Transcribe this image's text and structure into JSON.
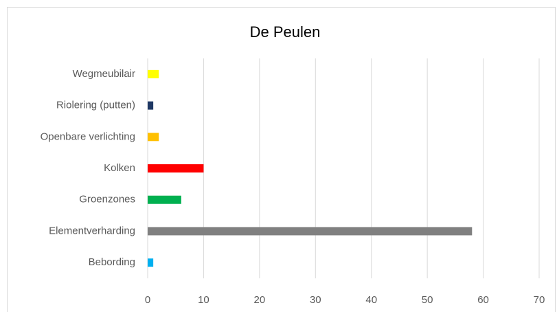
{
  "chart_data": {
    "type": "hbar",
    "title": "De Peulen",
    "categories": [
      "Wegmeubilair",
      "Riolering (putten)",
      "Openbare verlichting",
      "Kolken",
      "Groenzones",
      "Elementverharding",
      "Bebording"
    ],
    "values": [
      2,
      1,
      2,
      10,
      6,
      58,
      1
    ],
    "colors": [
      "#ffff00",
      "#1f3864",
      "#ffc000",
      "#ff0000",
      "#00b050",
      "#808080",
      "#00b0f0"
    ],
    "xlim": [
      0,
      70
    ],
    "xticks": [
      0,
      10,
      20,
      30,
      40,
      50,
      60,
      70
    ],
    "grid": true
  }
}
